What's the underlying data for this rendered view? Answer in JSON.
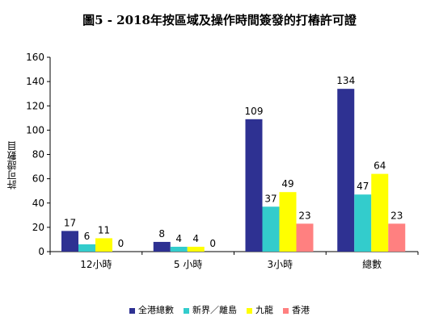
{
  "chart_data": {
    "type": "bar",
    "title": "圖5 - 2018年按區域及操作時間簽發的打樁許可證",
    "xlabel": "",
    "ylabel": "許可證數目",
    "categories": [
      "12小時",
      "5 小時",
      "3小時",
      "總數"
    ],
    "ylim": [
      0,
      160
    ],
    "yticks": [
      0,
      20,
      40,
      60,
      80,
      100,
      120,
      140,
      160
    ],
    "grid": false,
    "legend_position": "bottom",
    "series": [
      {
        "name": "全港總數",
        "color": "#2e3192",
        "values": [
          17,
          8,
          109,
          134
        ]
      },
      {
        "name": "新界／離島",
        "color": "#33cccc",
        "values": [
          6,
          4,
          37,
          47
        ]
      },
      {
        "name": "九龍",
        "color": "#ffff00",
        "values": [
          11,
          4,
          49,
          64
        ]
      },
      {
        "name": "香港",
        "color": "#ff8080",
        "values": [
          0,
          0,
          23,
          23
        ]
      }
    ]
  }
}
